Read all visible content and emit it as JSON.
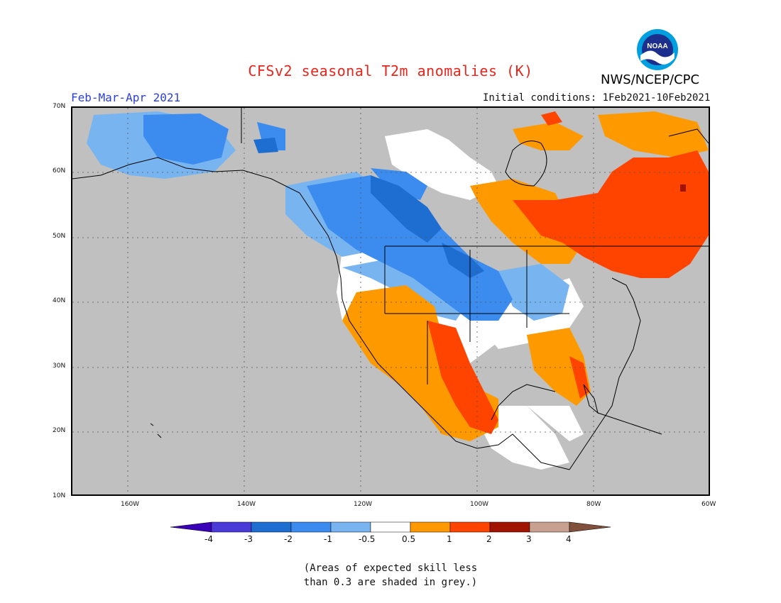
{
  "header": {
    "title": "CFSv2 seasonal T2m anomalies (K)",
    "season": "Feb-Mar-Apr 2021",
    "initial_conditions": "Initial conditions: 1Feb2021-10Feb2021",
    "agency": "NWS/NCEP/CPC",
    "logo_text": "NOAA"
  },
  "map": {
    "lat_labels": [
      "70N",
      "60N",
      "50N",
      "40N",
      "30N",
      "20N",
      "10N"
    ],
    "lon_labels": [
      "160W",
      "140W",
      "120W",
      "100W",
      "80W",
      "60W"
    ],
    "colors": {
      "grey": "#c0c0c0",
      "white": "#ffffff",
      "blue1": "#78b4f0",
      "blue2": "#3c8cf0",
      "blue3": "#1e6ed2",
      "orange1": "#ff9900",
      "red1": "#ff4400",
      "red2": "#a01400"
    }
  },
  "legend": {
    "tick_labels": [
      "-4",
      "-3",
      "-2",
      "-1",
      "-0.5",
      "0.5",
      "1",
      "2",
      "3",
      "4"
    ],
    "colors": [
      "#3a00b8",
      "#4a3ad8",
      "#1e6ed2",
      "#3c8cf0",
      "#78b4f0",
      "#ffffff",
      "#ff9900",
      "#ff4400",
      "#a01400",
      "#c8a090",
      "#80503c"
    ]
  },
  "footnote": {
    "line1": "(Areas of expected skill less",
    "line2": "than 0.3 are shaded in grey.)"
  }
}
